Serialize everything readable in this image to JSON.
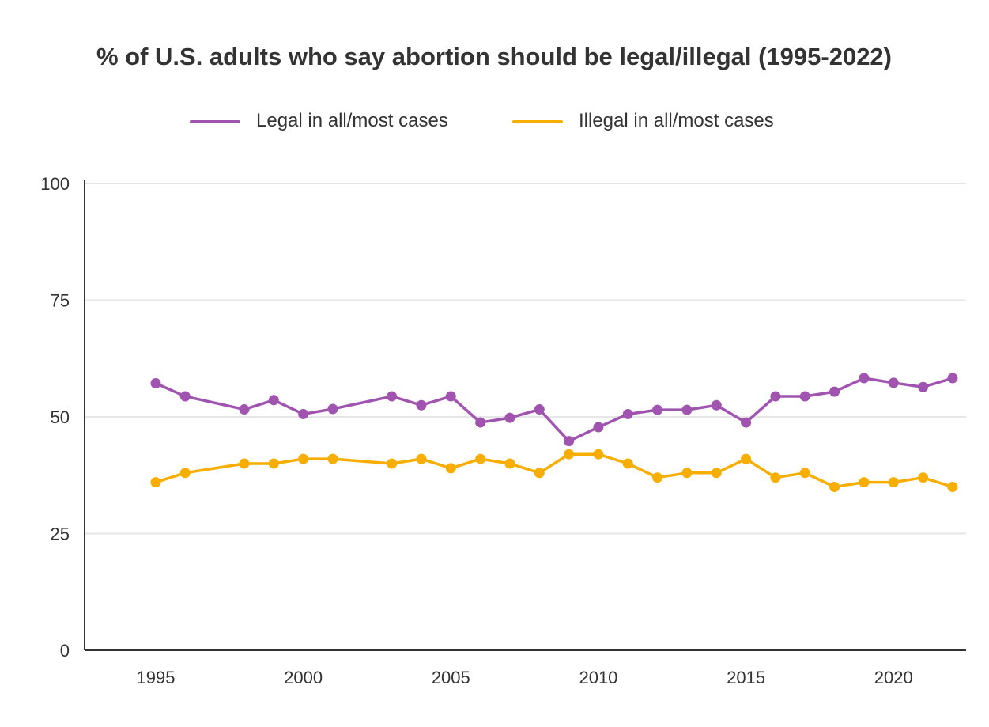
{
  "chart_data": {
    "type": "line",
    "title": "% of U.S. adults who say abortion should be legal/illegal (1995-2022)",
    "xlabel": "",
    "ylabel": "",
    "ylim": [
      0,
      100
    ],
    "xlim": [
      1992.5,
      2022.5
    ],
    "yticks": [
      0,
      25,
      50,
      75,
      100
    ],
    "xticks": [
      1995,
      2000,
      2005,
      2010,
      2015,
      2020
    ],
    "grid": "horizontal",
    "legend_position": "top",
    "x": [
      1995,
      1996,
      1998,
      1999,
      2000,
      2001,
      2003,
      2004,
      2005,
      2006,
      2007,
      2008,
      2009,
      2010,
      2011,
      2012,
      2013,
      2014,
      2015,
      2016,
      2017,
      2018,
      2019,
      2020,
      2021,
      2022
    ],
    "series": [
      {
        "name": "Legal in all/most cases",
        "color": "#a054b0",
        "values": [
          57.2,
          54.4,
          51.6,
          53.6,
          50.6,
          51.7,
          54.4,
          52.5,
          54.4,
          48.8,
          49.8,
          51.6,
          44.8,
          47.8,
          50.6,
          51.5,
          51.5,
          52.5,
          48.8,
          54.4,
          54.4,
          55.4,
          58.3,
          57.3,
          56.4,
          58.3
        ]
      },
      {
        "name": "Illegal in all/most cases",
        "color": "#f7ae00",
        "values": [
          36,
          38,
          40,
          40,
          41,
          41,
          40,
          41,
          39,
          41,
          40,
          38,
          42,
          42,
          40,
          37,
          38,
          38,
          41,
          37,
          38,
          35,
          36,
          36,
          37,
          35
        ]
      }
    ]
  }
}
